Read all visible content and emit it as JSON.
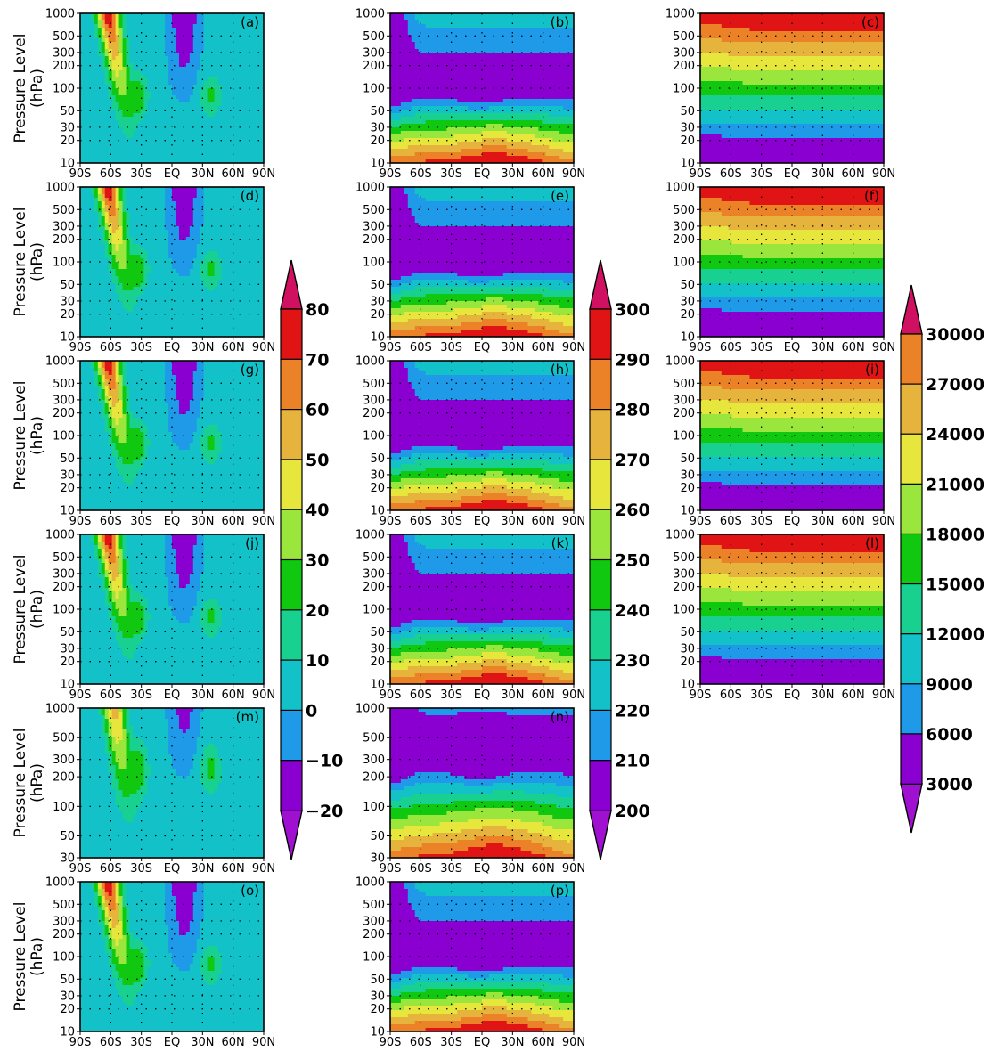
{
  "figure": {
    "ylabel_line1": "Pressure Level",
    "ylabel_line2": "(hPa)"
  },
  "palette": [
    "#8a00d0",
    "#1f9ae8",
    "#12c2c8",
    "#18d090",
    "#10c810",
    "#9ae63c",
    "#e6e63c",
    "#e6b43c",
    "#ec8228",
    "#e01414"
  ],
  "arrow_colors": {
    "low": "#a010d0",
    "high": "#d01060"
  },
  "chart_data": {
    "type": "heatmap",
    "x_ticks": [
      "90S",
      "60S",
      "30S",
      "EQ",
      "30N",
      "60N",
      "90N"
    ],
    "y_ticks_full": [
      "10",
      "20",
      "30",
      "50",
      "100",
      "200",
      "300",
      "500",
      "1000"
    ],
    "y_ticks_short": [
      "30",
      "50",
      "100",
      "200",
      "300",
      "500",
      "1000"
    ],
    "panels": [
      {
        "letter": "(a)",
        "column": 0,
        "field": "u",
        "top_level": "10"
      },
      {
        "letter": "(b)",
        "column": 1,
        "field": "t",
        "top_level": "10"
      },
      {
        "letter": "(c)",
        "column": 2,
        "field": "z",
        "top_level": "10"
      },
      {
        "letter": "(d)",
        "column": 0,
        "field": "u",
        "top_level": "10"
      },
      {
        "letter": "(e)",
        "column": 1,
        "field": "t",
        "top_level": "10"
      },
      {
        "letter": "(f)",
        "column": 2,
        "field": "z",
        "top_level": "10"
      },
      {
        "letter": "(g)",
        "column": 0,
        "field": "u",
        "top_level": "10"
      },
      {
        "letter": "(h)",
        "column": 1,
        "field": "t",
        "top_level": "10"
      },
      {
        "letter": "(i)",
        "column": 2,
        "field": "z",
        "top_level": "10"
      },
      {
        "letter": "(j)",
        "column": 0,
        "field": "u",
        "top_level": "10"
      },
      {
        "letter": "(k)",
        "column": 1,
        "field": "t",
        "top_level": "10"
      },
      {
        "letter": "(l)",
        "column": 2,
        "field": "z",
        "top_level": "10"
      },
      {
        "letter": "(m)",
        "column": 0,
        "field": "u",
        "top_level": "30"
      },
      {
        "letter": "(n)",
        "column": 1,
        "field": "t",
        "top_level": "30"
      },
      {
        "letter": "(o)",
        "column": 0,
        "field": "u",
        "top_level": "10"
      },
      {
        "letter": "(p)",
        "column": 1,
        "field": "t",
        "top_level": "10"
      }
    ],
    "colorbars": [
      {
        "field": "u",
        "labels": [
          "80",
          "70",
          "60",
          "50",
          "40",
          "30",
          "20",
          "10",
          "0",
          "−10",
          "−20"
        ]
      },
      {
        "field": "t",
        "labels": [
          "300",
          "290",
          "280",
          "270",
          "260",
          "250",
          "240",
          "230",
          "220",
          "210",
          "200"
        ]
      },
      {
        "field": "z",
        "labels": [
          "30000",
          "27000",
          "24000",
          "21000",
          "18000",
          "15000",
          "12000",
          "9000",
          "6000",
          "3000"
        ]
      }
    ]
  }
}
